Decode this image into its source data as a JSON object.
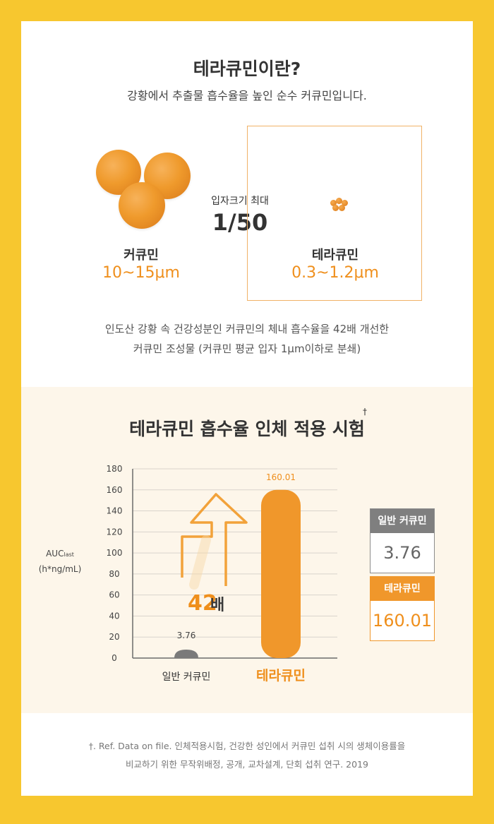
{
  "header": {
    "title": "테라큐민이란?",
    "subtitle": "강황에서 추출물 흡수율을 높인 순수 커큐민입니다."
  },
  "comparison": {
    "left_name": "커큐민",
    "left_size": "10~15μm",
    "center_caption": "입자크기 최대",
    "center_ratio": "1/50",
    "right_name": "테라큐민",
    "right_size": "0.3~1.2μm"
  },
  "description": {
    "line1": "인도산 강황 속 건강성분인 커큐민의 체내 흡수율을 42배 개선한",
    "line2": "커큐민 조성물 (커큐민 평균 입자 1μm이하로 분쇄)"
  },
  "trial": {
    "title": "테라큐민 흡수율 인체 적용 시험",
    "dagger": "†",
    "multiplier_number": "42",
    "multiplier_unit": "배"
  },
  "chart_data": {
    "type": "bar",
    "categories": [
      "일반 커큐민",
      "테라큐민"
    ],
    "values": [
      3.76,
      160.01
    ],
    "value_labels": [
      "3.76",
      "160.01"
    ],
    "ylabel": "AUClast\n(h*ng/mL)",
    "ylim": [
      0,
      180
    ],
    "yticks": [
      0,
      20,
      40,
      60,
      80,
      100,
      120,
      140,
      160,
      180
    ],
    "grid": true,
    "colors": [
      "#7a7a7a",
      "#f0972b"
    ]
  },
  "legend": {
    "items": [
      {
        "label": "일반 커큐민",
        "value": "3.76",
        "color": "#7f7f7f"
      },
      {
        "label": "테라큐민",
        "value": "160.01",
        "color": "#f0972b"
      }
    ]
  },
  "footnote": {
    "line1": "†. Ref. Data on file. 인체적용시험, 건강한 성인에서 커큐민 섭취 시의 생체이용률을",
    "line2": "비교하기 위한 무작위배정, 공개, 교차설계, 단회 섭취 연구. 2019"
  }
}
